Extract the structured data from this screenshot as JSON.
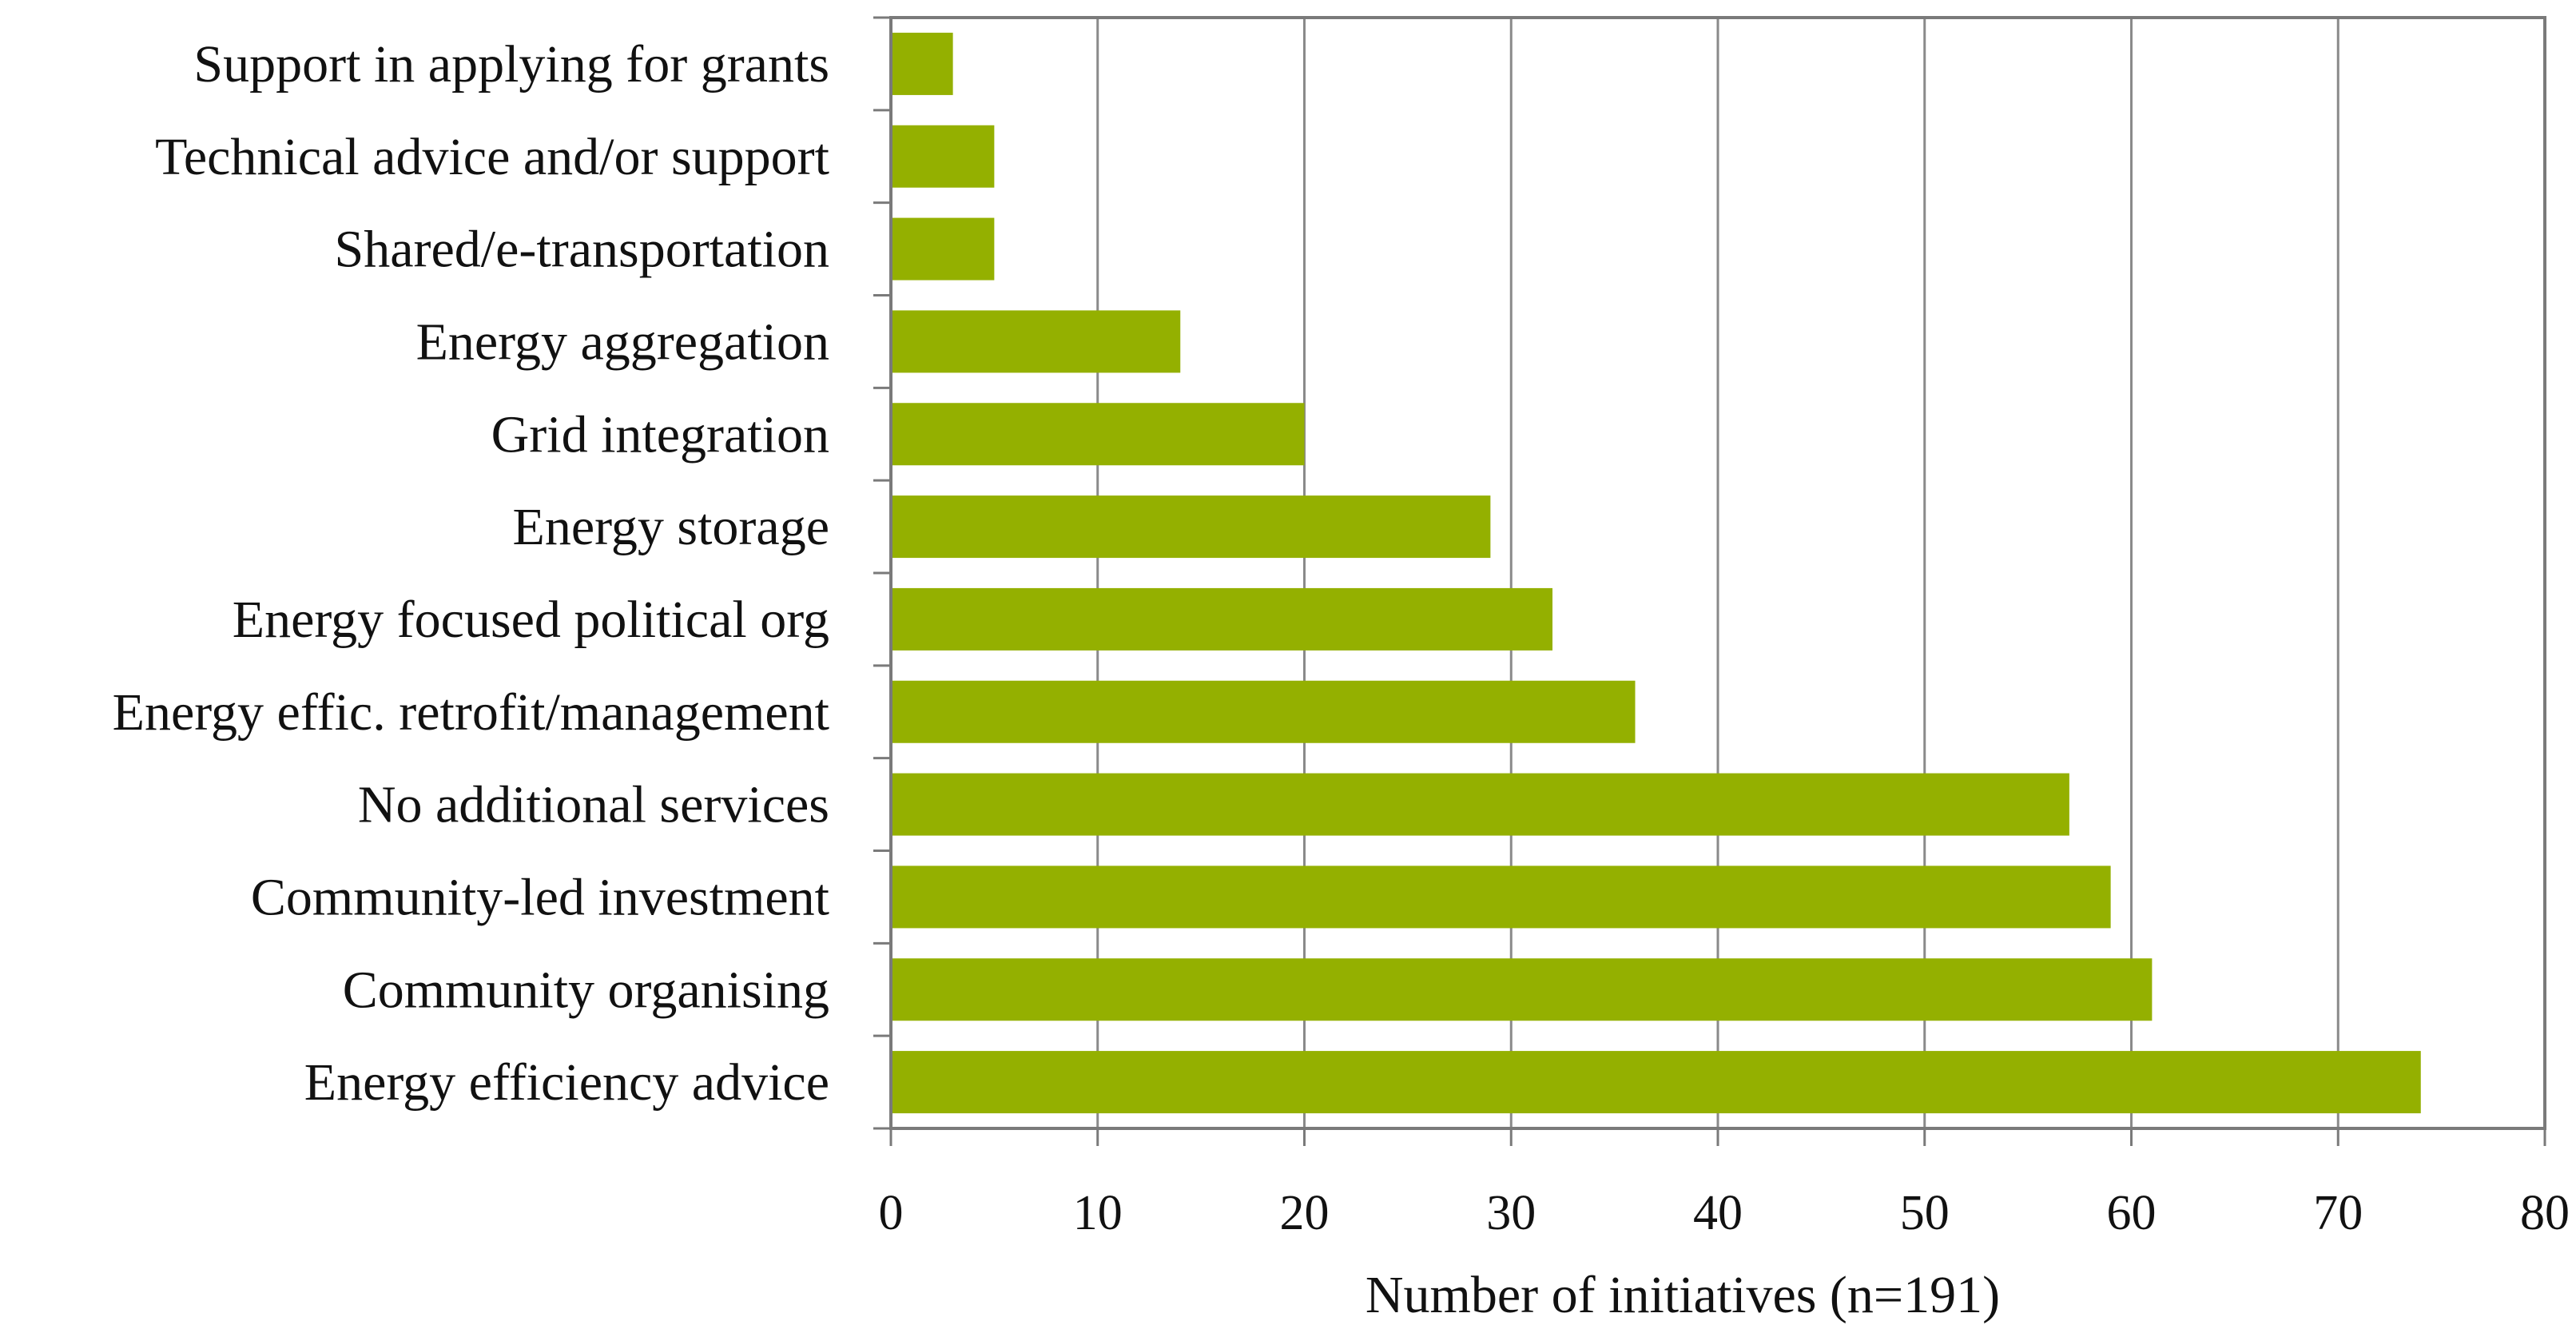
{
  "chart_data": {
    "type": "bar",
    "orientation": "horizontal",
    "categories": [
      "Support in applying for grants",
      "Technical advice and/or support",
      "Shared/e-transportation",
      "Energy aggregation",
      "Grid integration",
      "Energy storage",
      "Energy focused political org",
      "Energy effic. retrofit/management",
      "No additional services",
      "Community-led investment",
      "Community organising",
      "Energy efficiency advice"
    ],
    "values": [
      3,
      5,
      5,
      14,
      20,
      29,
      32,
      36,
      57,
      59,
      61,
      74
    ],
    "title": "",
    "xlabel": "Number of initiatives (n=191)",
    "ylabel": "",
    "xlim": [
      0,
      80
    ],
    "xticks": [
      0,
      10,
      20,
      30,
      40,
      50,
      60,
      70,
      80
    ],
    "grid": "vertical",
    "legend": "none",
    "colors": {
      "bar": "#94b000",
      "grid": "#8a8a8a",
      "axis": "#7a7a7a",
      "frame": "#7a7a7a"
    }
  }
}
